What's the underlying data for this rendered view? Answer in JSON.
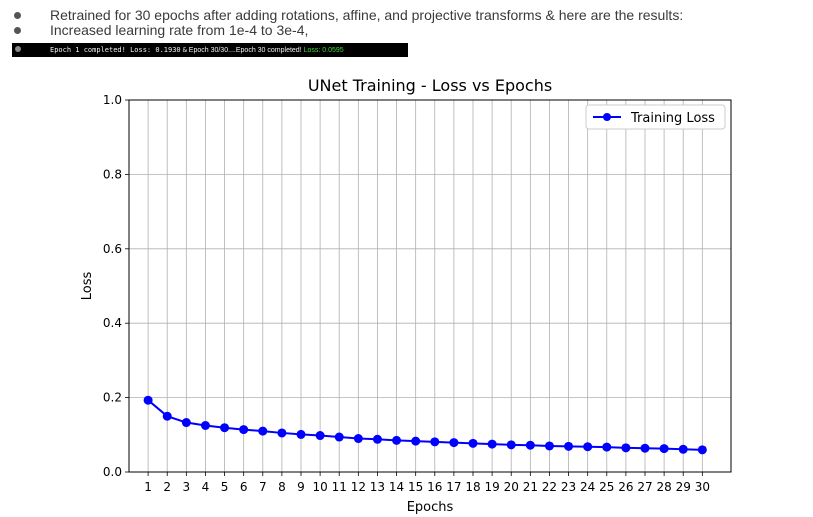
{
  "notes": {
    "items": [
      "Retrained for 30 epochs after adding rotations, affine, and projective transforms & here are the results:",
      "Increased learning rate from 1e-4 to 3e-4,"
    ],
    "terminal": {
      "epoch1": "Epoch 1 completed! Loss: 0.1930",
      "amp": "&",
      "progress": "Epoch 30/30....Epoch 30 completed!",
      "final": "Loss: 0.0595"
    }
  },
  "colors": {
    "line": "#0000ff",
    "grid": "#b0b0b0",
    "terminal_bg": "#000000",
    "loss_highlight": "#3ddc3d"
  },
  "chart_data": {
    "type": "line",
    "title": "UNet Training - Loss vs Epochs",
    "xlabel": "Epochs",
    "ylabel": "Loss",
    "x": [
      1,
      2,
      3,
      4,
      5,
      6,
      7,
      8,
      9,
      10,
      11,
      12,
      13,
      14,
      15,
      16,
      17,
      18,
      19,
      20,
      21,
      22,
      23,
      24,
      25,
      26,
      27,
      28,
      29,
      30
    ],
    "series": [
      {
        "name": "Training Loss",
        "marker": "circle",
        "color": "#0000ff",
        "values": [
          0.193,
          0.15,
          0.133,
          0.125,
          0.119,
          0.114,
          0.11,
          0.105,
          0.101,
          0.098,
          0.094,
          0.09,
          0.088,
          0.085,
          0.083,
          0.081,
          0.079,
          0.077,
          0.075,
          0.073,
          0.072,
          0.07,
          0.069,
          0.068,
          0.067,
          0.065,
          0.064,
          0.063,
          0.061,
          0.0595
        ]
      }
    ],
    "ylim": [
      0,
      1.0
    ],
    "yticks": [
      "0.0",
      "0.2",
      "0.4",
      "0.6",
      "0.8",
      "1.0"
    ],
    "xticks": [
      "1",
      "2",
      "3",
      "4",
      "5",
      "6",
      "7",
      "8",
      "9",
      "10",
      "11",
      "12",
      "13",
      "14",
      "15",
      "16",
      "17",
      "18",
      "19",
      "20",
      "21",
      "22",
      "23",
      "24",
      "25",
      "26",
      "27",
      "28",
      "29",
      "30"
    ],
    "grid": true,
    "legend": "top-right"
  }
}
